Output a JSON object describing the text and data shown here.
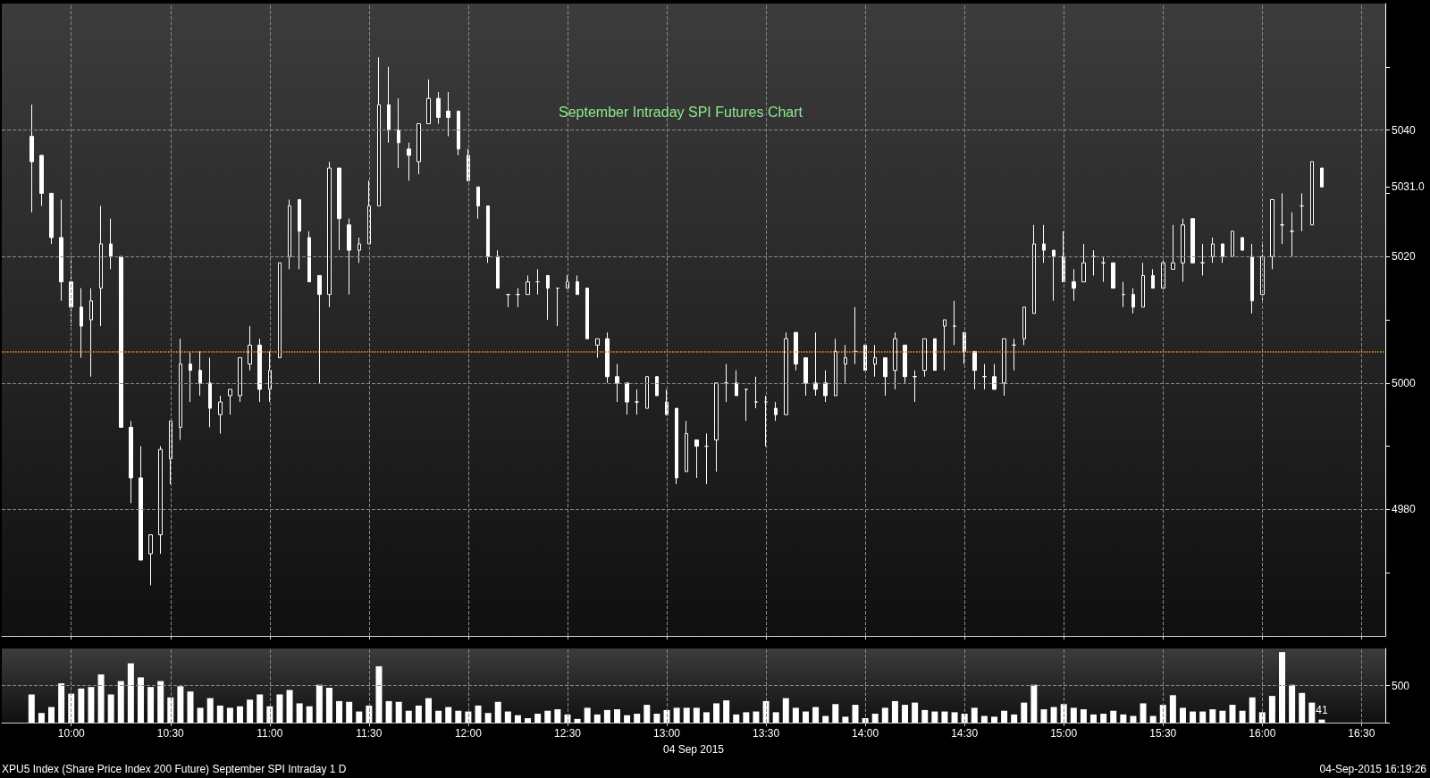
{
  "chart_data": [
    {
      "type": "candlestick",
      "title": "September Intraday SPI Futures Chart",
      "color": "#ffffff",
      "x": [
        9.8,
        9.85,
        9.9,
        9.95,
        10,
        10.05,
        10.1,
        10.15,
        10.2,
        10.25,
        10.3,
        10.35,
        10.4,
        10.45,
        10.5,
        10.55,
        10.6,
        10.65,
        10.7,
        10.75,
        10.8,
        10.85,
        10.9,
        10.95,
        11,
        11.05,
        11.1,
        11.15,
        11.2,
        11.25,
        11.3,
        11.35,
        11.4,
        11.45,
        11.5,
        11.55,
        11.6,
        11.65,
        11.7,
        11.75,
        11.8,
        11.85,
        11.9,
        11.95,
        12,
        12.05,
        12.1,
        12.15,
        12.2,
        12.25,
        12.3,
        12.35,
        12.4,
        12.45,
        12.5,
        12.55,
        12.6,
        12.65,
        12.7,
        12.75,
        12.8,
        12.85,
        12.9,
        12.95,
        13,
        13.05,
        13.1,
        13.15,
        13.2,
        13.25,
        13.3,
        13.35,
        13.4,
        13.45,
        13.5,
        13.55,
        13.6,
        13.65,
        13.7,
        13.75,
        13.8,
        13.85,
        13.9,
        13.95,
        14,
        14.05,
        14.1,
        14.15,
        14.2,
        14.25,
        14.3,
        14.35,
        14.4,
        14.45,
        14.5,
        14.55,
        14.6,
        14.65,
        14.7,
        14.75,
        14.8,
        14.85,
        14.9,
        14.95,
        15,
        15.05,
        15.1,
        15.15,
        15.2,
        15.25,
        15.3,
        15.35,
        15.4,
        15.45,
        15.5,
        15.55,
        15.6,
        15.65,
        15.7,
        15.75,
        15.8,
        15.85,
        15.9,
        15.95,
        16,
        16.05,
        16.1,
        16.15,
        16.2,
        16.25,
        16.3
      ],
      "ohlc": [
        [
          5039,
          5044,
          5027,
          5035
        ],
        [
          5036,
          5036,
          5028,
          5030
        ],
        [
          5030,
          5030,
          5022,
          5023
        ],
        [
          5023,
          5029,
          5013,
          5016
        ],
        [
          5016,
          5020,
          5009,
          5012
        ],
        [
          5012,
          5015,
          5004,
          5009
        ],
        [
          5010,
          5015,
          5001,
          5013
        ],
        [
          5015,
          5028,
          5009,
          5022
        ],
        [
          5022,
          5026,
          5018,
          5020
        ],
        [
          5020,
          5020,
          4993,
          4993
        ],
        [
          4993,
          4994,
          4981,
          4985
        ],
        [
          4985,
          4990,
          4972,
          4972
        ],
        [
          4973,
          4976,
          4968,
          4976
        ],
        [
          4976,
          4990,
          4973,
          4989.5
        ],
        [
          4988,
          4994,
          4984,
          4994
        ],
        [
          4993,
          5007,
          4991,
          5003
        ],
        [
          5003,
          5005,
          4997,
          5002
        ],
        [
          5002,
          5005,
          4998,
          5000
        ],
        [
          5000,
          5004,
          4993,
          4996
        ],
        [
          4995,
          4998,
          4992,
          4997
        ],
        [
          4998,
          4999,
          4995,
          4999
        ],
        [
          4998,
          5004,
          4997,
          5004
        ],
        [
          5003,
          5009,
          5002,
          5006
        ],
        [
          5006,
          5007,
          4997,
          4999
        ],
        [
          4999,
          5005,
          4997,
          5002
        ],
        [
          5004,
          5019,
          5004,
          5019
        ],
        [
          5020,
          5029,
          5018,
          5028
        ],
        [
          5029,
          5029,
          5018,
          5024
        ],
        [
          5023,
          5024,
          5016,
          5016
        ],
        [
          5017,
          5017,
          5000,
          5014
        ],
        [
          5014,
          5035,
          5012,
          5034
        ],
        [
          5034,
          5034,
          5021,
          5026
        ],
        [
          5025,
          5026,
          5014,
          5021
        ],
        [
          5021,
          5023,
          5019,
          5022
        ],
        [
          5022,
          5032,
          5022,
          5028
        ],
        [
          5028,
          5051.5,
          5028,
          5044
        ],
        [
          5044,
          5050,
          5038,
          5040
        ],
        [
          5040,
          5045,
          5034,
          5038
        ],
        [
          5037,
          5038,
          5032,
          5036
        ],
        [
          5035,
          5041,
          5033,
          5041
        ],
        [
          5041,
          5048,
          5041,
          5045
        ],
        [
          5045,
          5046,
          5041,
          5042
        ],
        [
          5043,
          5046,
          5039,
          5042
        ],
        [
          5043,
          5043,
          5036,
          5037
        ],
        [
          5036,
          5037,
          5032,
          5032
        ],
        [
          5031,
          5031,
          5026,
          5028
        ],
        [
          5028,
          5028,
          5019,
          5020
        ],
        [
          5020,
          5021,
          5015,
          5015
        ],
        [
          5014,
          5014,
          5012,
          5014
        ],
        [
          5014,
          5015,
          5012,
          5014
        ],
        [
          5014,
          5017,
          5014,
          5016
        ],
        [
          5016,
          5018,
          5014,
          5016
        ],
        [
          5017,
          5017,
          5010,
          5015
        ],
        [
          5015,
          5015,
          5009,
          5015
        ],
        [
          5015,
          5017,
          5015,
          5016
        ],
        [
          5016,
          5017,
          5014,
          5014
        ],
        [
          5015,
          5015,
          5007,
          5007
        ],
        [
          5006,
          5007,
          5004,
          5007
        ],
        [
          5007,
          5008,
          5000,
          5001
        ],
        [
          5001,
          5003,
          4997,
          5000
        ],
        [
          5000,
          5000,
          4995,
          4997
        ],
        [
          4997,
          4999,
          4995,
          4997
        ],
        [
          4996,
          5001,
          4996,
          5001
        ],
        [
          5001,
          5001,
          4998,
          4998
        ],
        [
          4997,
          4999,
          4995,
          4995
        ],
        [
          4996,
          4996,
          4984,
          4985
        ],
        [
          4986,
          4994,
          4986,
          4992
        ],
        [
          4991,
          4991,
          4985,
          4990
        ],
        [
          4990,
          4992,
          4984,
          4990
        ],
        [
          4991,
          5000,
          4986,
          5000
        ],
        [
          5000,
          5003,
          4997,
          5000
        ],
        [
          5000,
          5002,
          4998,
          4998
        ],
        [
          4999,
          4999,
          4994,
          4999
        ],
        [
          4997,
          5001,
          4996,
          4997
        ],
        [
          4997,
          4998,
          4990,
          4997
        ],
        [
          4996,
          4997,
          4994,
          4995
        ],
        [
          4995,
          5008,
          4995,
          5007
        ],
        [
          5008,
          5008,
          5002,
          5003
        ],
        [
          5004,
          5004,
          4998,
          5000
        ],
        [
          5000,
          5008,
          4998,
          4999
        ],
        [
          5000,
          5002,
          4997,
          4998
        ],
        [
          4998,
          5007,
          4998,
          5005
        ],
        [
          5003,
          5006,
          5000,
          5004
        ],
        [
          5005,
          5012,
          5003,
          5005
        ],
        [
          5006,
          5006,
          5002,
          5002
        ],
        [
          5003,
          5006,
          5001,
          5004
        ],
        [
          5004,
          5004,
          4998,
          5001
        ],
        [
          5002,
          5008,
          4999,
          5007
        ],
        [
          5006,
          5006,
          5000,
          5001
        ],
        [
          5001,
          5002,
          4997,
          5001
        ],
        [
          5002,
          5007,
          5001,
          5007
        ],
        [
          5007,
          5007,
          5002,
          5002
        ],
        [
          5009,
          5010,
          5002,
          5010
        ],
        [
          5009,
          5013,
          5006,
          5009
        ],
        [
          5008,
          5008,
          5003,
          5005
        ],
        [
          5005,
          5005,
          4999,
          5002
        ],
        [
          5001,
          5003,
          4999,
          5001
        ],
        [
          5001,
          5003,
          4999,
          4999
        ],
        [
          5000,
          5007,
          4998,
          5007
        ],
        [
          5006,
          5007,
          5002,
          5006
        ],
        [
          5007,
          5012,
          5006,
          5012
        ],
        [
          5011,
          5025,
          5011,
          5022
        ],
        [
          5022,
          5025,
          5019,
          5021
        ],
        [
          5021,
          5021,
          5013,
          5020
        ],
        [
          5020,
          5024,
          5016,
          5016
        ],
        [
          5016,
          5018,
          5013,
          5015
        ],
        [
          5016,
          5022,
          5016,
          5019
        ],
        [
          5020,
          5021,
          5017,
          5020
        ],
        [
          5019,
          5020,
          5016,
          5019
        ],
        [
          5019,
          5019,
          5015,
          5015
        ],
        [
          5014,
          5016,
          5012,
          5014
        ],
        [
          5014,
          5015,
          5011,
          5012
        ],
        [
          5012,
          5019,
          5012,
          5017
        ],
        [
          5017,
          5018,
          5015,
          5015
        ],
        [
          5015,
          5020,
          5015,
          5019
        ],
        [
          5018,
          5025,
          5018,
          5019
        ],
        [
          5019,
          5026,
          5016,
          5025
        ],
        [
          5026,
          5026,
          5019,
          5019
        ],
        [
          5019,
          5022,
          5017,
          5019
        ],
        [
          5020,
          5023,
          5019,
          5022
        ],
        [
          5022,
          5022,
          5019,
          5020
        ],
        [
          5020,
          5024,
          5020,
          5024
        ],
        [
          5023,
          5023,
          5021,
          5021
        ],
        [
          5020,
          5022,
          5011,
          5013
        ],
        [
          5014,
          5022,
          5013,
          5020
        ],
        [
          5020,
          5029,
          5018,
          5029
        ],
        [
          5025,
          5030,
          5022,
          5025
        ],
        [
          5024,
          5027,
          5020,
          5024
        ],
        [
          5028,
          5030,
          5024,
          5028
        ],
        [
          5025,
          5035,
          5025,
          5035
        ],
        [
          5034,
          5034,
          5031,
          5031
        ]
      ],
      "xlim": [
        9.65,
        16.62
      ],
      "xticks": [
        10,
        10.5,
        11,
        11.5,
        12,
        12.5,
        13,
        13.5,
        14,
        14.5,
        15,
        15.5,
        16,
        16.5
      ],
      "ylim": [
        4960,
        5060
      ],
      "yticks": [
        {
          "value": 4970,
          "label": null
        },
        4980,
        {
          "value": 4990,
          "label": null
        },
        5000,
        {
          "value": 5010,
          "label": null
        },
        5020,
        {
          "value": 5030,
          "label": null
        },
        {
          "value": 5031,
          "label": "5031.0"
        },
        5040,
        {
          "value": 5050,
          "label": null
        }
      ],
      "grid": true,
      "tick_labels": "y",
      "ref_lines": [
        {
          "axis": "y",
          "value": 5005,
          "color": "#f5a000",
          "line_style": "dotted"
        }
      ],
      "annotations": [
        "XPU5 Index (Share Price Index 200 Future) September SPI Intraday 1 D",
        "04-Sep-2015 16:19:26"
      ]
    },
    {
      "type": "bar",
      "color": "#ffffff",
      "x": [
        9.8,
        9.85,
        9.9,
        9.95,
        10,
        10.05,
        10.1,
        10.15,
        10.2,
        10.25,
        10.3,
        10.35,
        10.4,
        10.45,
        10.5,
        10.55,
        10.6,
        10.65,
        10.7,
        10.75,
        10.8,
        10.85,
        10.9,
        10.95,
        11,
        11.05,
        11.1,
        11.15,
        11.2,
        11.25,
        11.3,
        11.35,
        11.4,
        11.45,
        11.5,
        11.55,
        11.6,
        11.65,
        11.7,
        11.75,
        11.8,
        11.85,
        11.9,
        11.95,
        12,
        12.05,
        12.1,
        12.15,
        12.2,
        12.25,
        12.3,
        12.35,
        12.4,
        12.45,
        12.5,
        12.55,
        12.6,
        12.65,
        12.7,
        12.75,
        12.8,
        12.85,
        12.9,
        12.95,
        13,
        13.05,
        13.1,
        13.15,
        13.2,
        13.25,
        13.3,
        13.35,
        13.4,
        13.45,
        13.5,
        13.55,
        13.6,
        13.65,
        13.7,
        13.75,
        13.8,
        13.85,
        13.9,
        13.95,
        14,
        14.05,
        14.1,
        14.15,
        14.2,
        14.25,
        14.3,
        14.35,
        14.4,
        14.45,
        14.5,
        14.55,
        14.6,
        14.65,
        14.7,
        14.75,
        14.8,
        14.85,
        14.9,
        14.95,
        15,
        15.05,
        15.1,
        15.15,
        15.2,
        15.25,
        15.3,
        15.35,
        15.4,
        15.45,
        15.5,
        15.55,
        15.6,
        15.65,
        15.7,
        15.75,
        15.8,
        15.85,
        15.9,
        15.95,
        16,
        16.05,
        16.1,
        16.15,
        16.2,
        16.25,
        16.3
      ],
      "values": [
        380,
        130,
        210,
        530,
        390,
        460,
        480,
        650,
        380,
        560,
        800,
        610,
        480,
        560,
        340,
        490,
        420,
        200,
        330,
        230,
        200,
        220,
        310,
        380,
        220,
        380,
        440,
        260,
        220,
        510,
        470,
        290,
        280,
        150,
        230,
        760,
        290,
        280,
        160,
        230,
        330,
        160,
        210,
        160,
        150,
        230,
        130,
        280,
        150,
        100,
        60,
        120,
        160,
        180,
        110,
        50,
        200,
        110,
        170,
        180,
        100,
        120,
        240,
        120,
        170,
        200,
        200,
        200,
        140,
        260,
        300,
        110,
        140,
        150,
        290,
        140,
        330,
        200,
        150,
        210,
        90,
        250,
        80,
        240,
        60,
        120,
        200,
        290,
        240,
        270,
        170,
        150,
        150,
        140,
        120,
        200,
        90,
        80,
        160,
        110,
        270,
        510,
        180,
        210,
        250,
        200,
        180,
        110,
        120,
        160,
        110,
        90,
        260,
        90,
        240,
        370,
        200,
        150,
        150,
        180,
        160,
        240,
        160,
        340,
        140,
        360,
        950,
        510,
        400,
        270,
        41
      ],
      "value_labels": [
        null,
        null,
        null,
        null,
        null,
        null,
        null,
        null,
        null,
        null,
        null,
        null,
        null,
        null,
        null,
        null,
        null,
        null,
        null,
        null,
        null,
        null,
        null,
        null,
        null,
        null,
        null,
        null,
        null,
        null,
        null,
        null,
        null,
        null,
        null,
        null,
        null,
        null,
        null,
        null,
        null,
        null,
        null,
        null,
        null,
        null,
        null,
        null,
        null,
        null,
        null,
        null,
        null,
        null,
        null,
        null,
        null,
        null,
        null,
        null,
        null,
        null,
        null,
        null,
        null,
        null,
        null,
        null,
        null,
        null,
        null,
        null,
        null,
        null,
        null,
        null,
        null,
        null,
        null,
        null,
        null,
        null,
        null,
        null,
        null,
        null,
        null,
        null,
        null,
        null,
        null,
        null,
        null,
        null,
        null,
        null,
        null,
        null,
        null,
        null,
        null,
        null,
        null,
        null,
        null,
        null,
        null,
        null,
        null,
        null,
        null,
        null,
        null,
        null,
        null,
        null,
        null,
        null,
        null,
        null,
        null,
        null,
        null,
        null,
        null,
        null,
        null,
        null,
        null,
        null,
        "41"
      ],
      "xlim": [
        9.65,
        16.62
      ],
      "xticks": [
        {
          "value": 10,
          "label": "10:00"
        },
        {
          "value": 10.5,
          "label": "10:30"
        },
        {
          "value": 11,
          "label": "11:00"
        },
        {
          "value": 11.5,
          "label": "11:30"
        },
        {
          "value": 12,
          "label": "12:00"
        },
        {
          "value": 12.5,
          "label": "12:30"
        },
        {
          "value": 13,
          "label": "13:00"
        },
        {
          "value": 13.5,
          "label": "13:30"
        },
        {
          "value": 14,
          "label": "14:00"
        },
        {
          "value": 14.5,
          "label": "14:30"
        },
        {
          "value": 15,
          "label": "15:00"
        },
        {
          "value": 15.5,
          "label": "15:30"
        },
        {
          "value": 16,
          "label": "16:00"
        },
        {
          "value": 16.5,
          "label": "16:30"
        }
      ],
      "xlabel": "04 Sep 2015",
      "ylim": [
        0,
        1000
      ],
      "yticks": [
        {
          "value": 0,
          "label": null
        },
        500
      ],
      "grid": true
    }
  ]
}
